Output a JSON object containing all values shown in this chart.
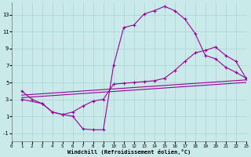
{
  "background_color": "#caeaea",
  "grid_color": "#aad4d4",
  "line_color": "#990099",
  "xlim": [
    0,
    23
  ],
  "ylim": [
    -2,
    14.5
  ],
  "xticks": [
    0,
    1,
    2,
    3,
    4,
    5,
    6,
    7,
    8,
    9,
    10,
    11,
    12,
    13,
    14,
    15,
    16,
    17,
    18,
    19,
    20,
    21,
    22,
    23
  ],
  "yticks": [
    -1,
    1,
    3,
    5,
    7,
    9,
    11,
    13
  ],
  "xlabel": "Windchill (Refroidissement éolien,°C)",
  "line1_x": [
    1,
    2,
    3,
    4,
    5,
    6,
    7,
    8,
    9,
    10,
    11,
    12,
    13,
    14,
    15,
    16,
    17,
    18,
    19,
    20,
    21,
    22,
    23
  ],
  "line1_y": [
    4.0,
    3.0,
    2.5,
    1.5,
    1.2,
    1.0,
    -0.5,
    -0.6,
    -0.6,
    7.0,
    11.5,
    11.8,
    13.1,
    13.5,
    14.0,
    13.5,
    12.5,
    10.8,
    8.2,
    7.8,
    6.8,
    6.2,
    5.5
  ],
  "line2_x": [
    1,
    3,
    4,
    5,
    6,
    7,
    8,
    9,
    10,
    11,
    12,
    13,
    14,
    15,
    16,
    17,
    18,
    19,
    20,
    21,
    22,
    23
  ],
  "line2_y": [
    3.0,
    2.5,
    1.5,
    1.2,
    1.5,
    2.2,
    2.8,
    3.0,
    4.8,
    4.9,
    5.0,
    5.1,
    5.2,
    5.5,
    6.4,
    7.5,
    8.5,
    8.8,
    9.2,
    8.2,
    7.5,
    5.5
  ],
  "line3_x": [
    1,
    23
  ],
  "line3_y": [
    3.5,
    5.3
  ],
  "line4_x": [
    1,
    23
  ],
  "line4_y": [
    3.2,
    5.0
  ]
}
